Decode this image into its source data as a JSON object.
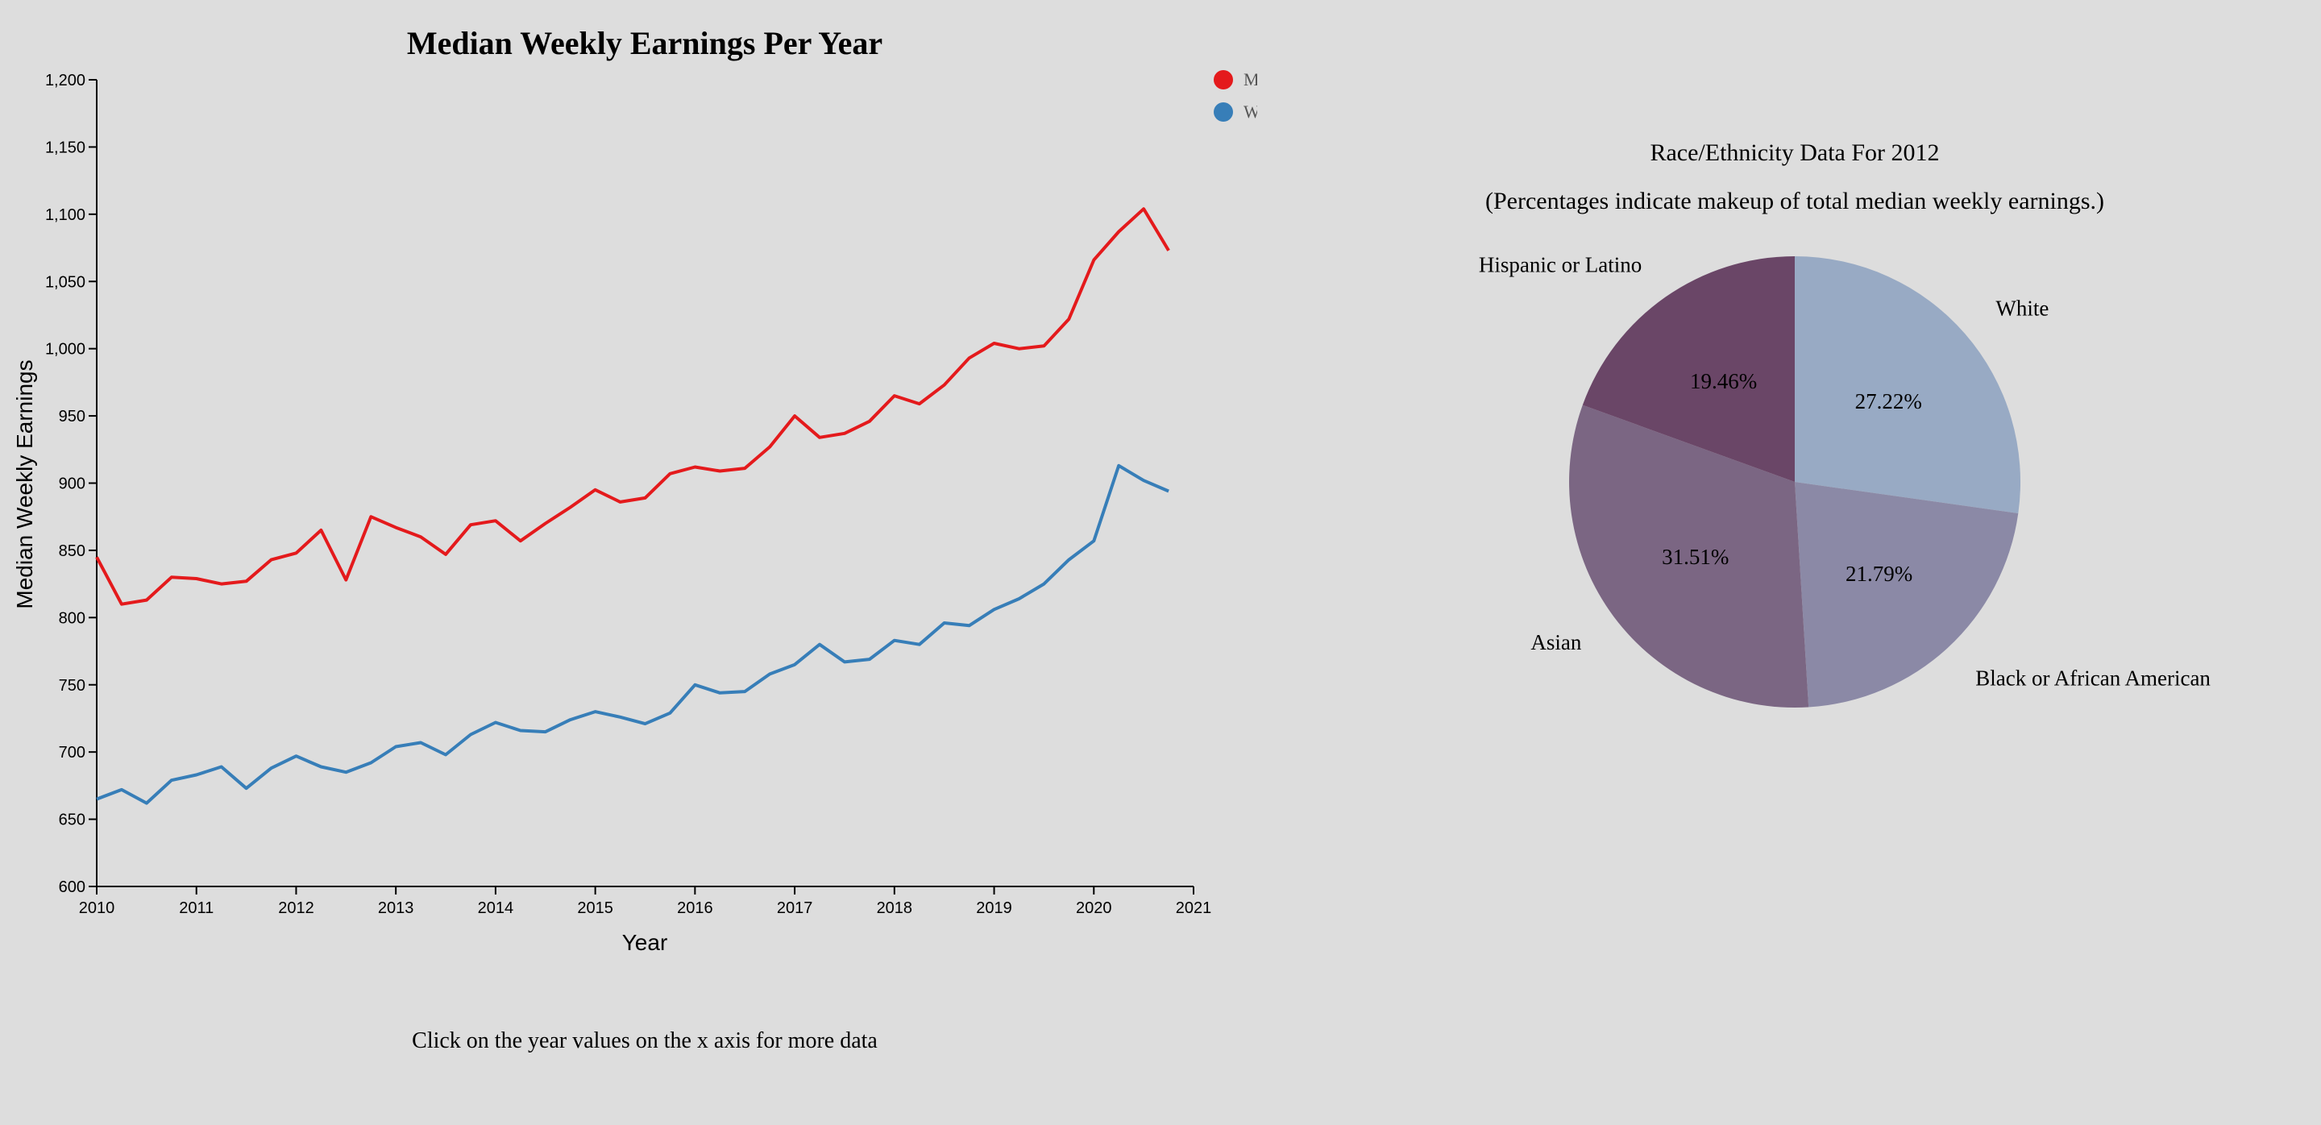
{
  "chart_data": [
    {
      "type": "line",
      "title": "Median Weekly Earnings Per Year",
      "xlabel": "Year",
      "ylabel": "Median Weekly Earnings",
      "xlim": [
        2010,
        2021
      ],
      "ylim": [
        600,
        1200
      ],
      "x_ticks": [
        "2010",
        "2011",
        "2012",
        "2013",
        "2014",
        "2015",
        "2016",
        "2017",
        "2018",
        "2019",
        "2020",
        "2021"
      ],
      "y_ticks": [
        "600",
        "650",
        "700",
        "750",
        "800",
        "850",
        "900",
        "950",
        "1,000",
        "1,050",
        "1,100",
        "1,150",
        "1,200"
      ],
      "legend_placement": "top-right",
      "grid": false,
      "x": [
        2010,
        2010.25,
        2010.5,
        2010.75,
        2011,
        2011.25,
        2011.5,
        2011.75,
        2012,
        2012.25,
        2012.5,
        2012.75,
        2013,
        2013.25,
        2013.5,
        2013.75,
        2014,
        2014.25,
        2014.5,
        2014.75,
        2015,
        2015.25,
        2015.5,
        2015.75,
        2016,
        2016.25,
        2016.5,
        2016.75,
        2017,
        2017.25,
        2017.5,
        2017.75,
        2018,
        2018.25,
        2018.5,
        2018.75,
        2019,
        2019.25,
        2019.5,
        2019.75,
        2020,
        2020.25,
        2020.5,
        2020.75
      ],
      "series": [
        {
          "name": "Men",
          "color": "#e41a1c",
          "values": [
            845,
            810,
            813,
            830,
            829,
            825,
            827,
            843,
            848,
            865,
            828,
            875,
            867,
            860,
            847,
            869,
            872,
            857,
            870,
            882,
            895,
            886,
            889,
            907,
            912,
            909,
            911,
            927,
            950,
            934,
            937,
            946,
            965,
            959,
            973,
            993,
            1004,
            1000,
            1002,
            1022,
            1066,
            1087,
            1104,
            1073
          ]
        },
        {
          "name": "Women",
          "color": "#377eb8",
          "values": [
            665,
            672,
            662,
            679,
            683,
            689,
            673,
            688,
            697,
            689,
            685,
            692,
            704,
            707,
            698,
            713,
            722,
            716,
            715,
            724,
            730,
            726,
            721,
            729,
            750,
            744,
            745,
            758,
            765,
            780,
            767,
            769,
            783,
            780,
            796,
            794,
            806,
            814,
            825,
            843,
            857,
            913,
            902,
            894
          ]
        }
      ],
      "footer": "Click on the year values on the x axis for more data"
    },
    {
      "type": "pie",
      "title": "Race/Ethnicity Data For 2012",
      "subtitle": "(Percentages indicate makeup of total median weekly earnings.)",
      "slices": [
        {
          "label": "White",
          "value": 27.22,
          "pct_label": "27.22%",
          "color": "#98aac4"
        },
        {
          "label": "Black or African American",
          "value": 21.79,
          "pct_label": "21.79%",
          "color": "#8b89a6"
        },
        {
          "label": "Asian",
          "value": 31.51,
          "pct_label": "31.51%",
          "color": "#7b6683"
        },
        {
          "label": "Hispanic or Latino",
          "value": 19.46,
          "pct_label": "19.46%",
          "color": "#6a4667"
        }
      ]
    }
  ]
}
